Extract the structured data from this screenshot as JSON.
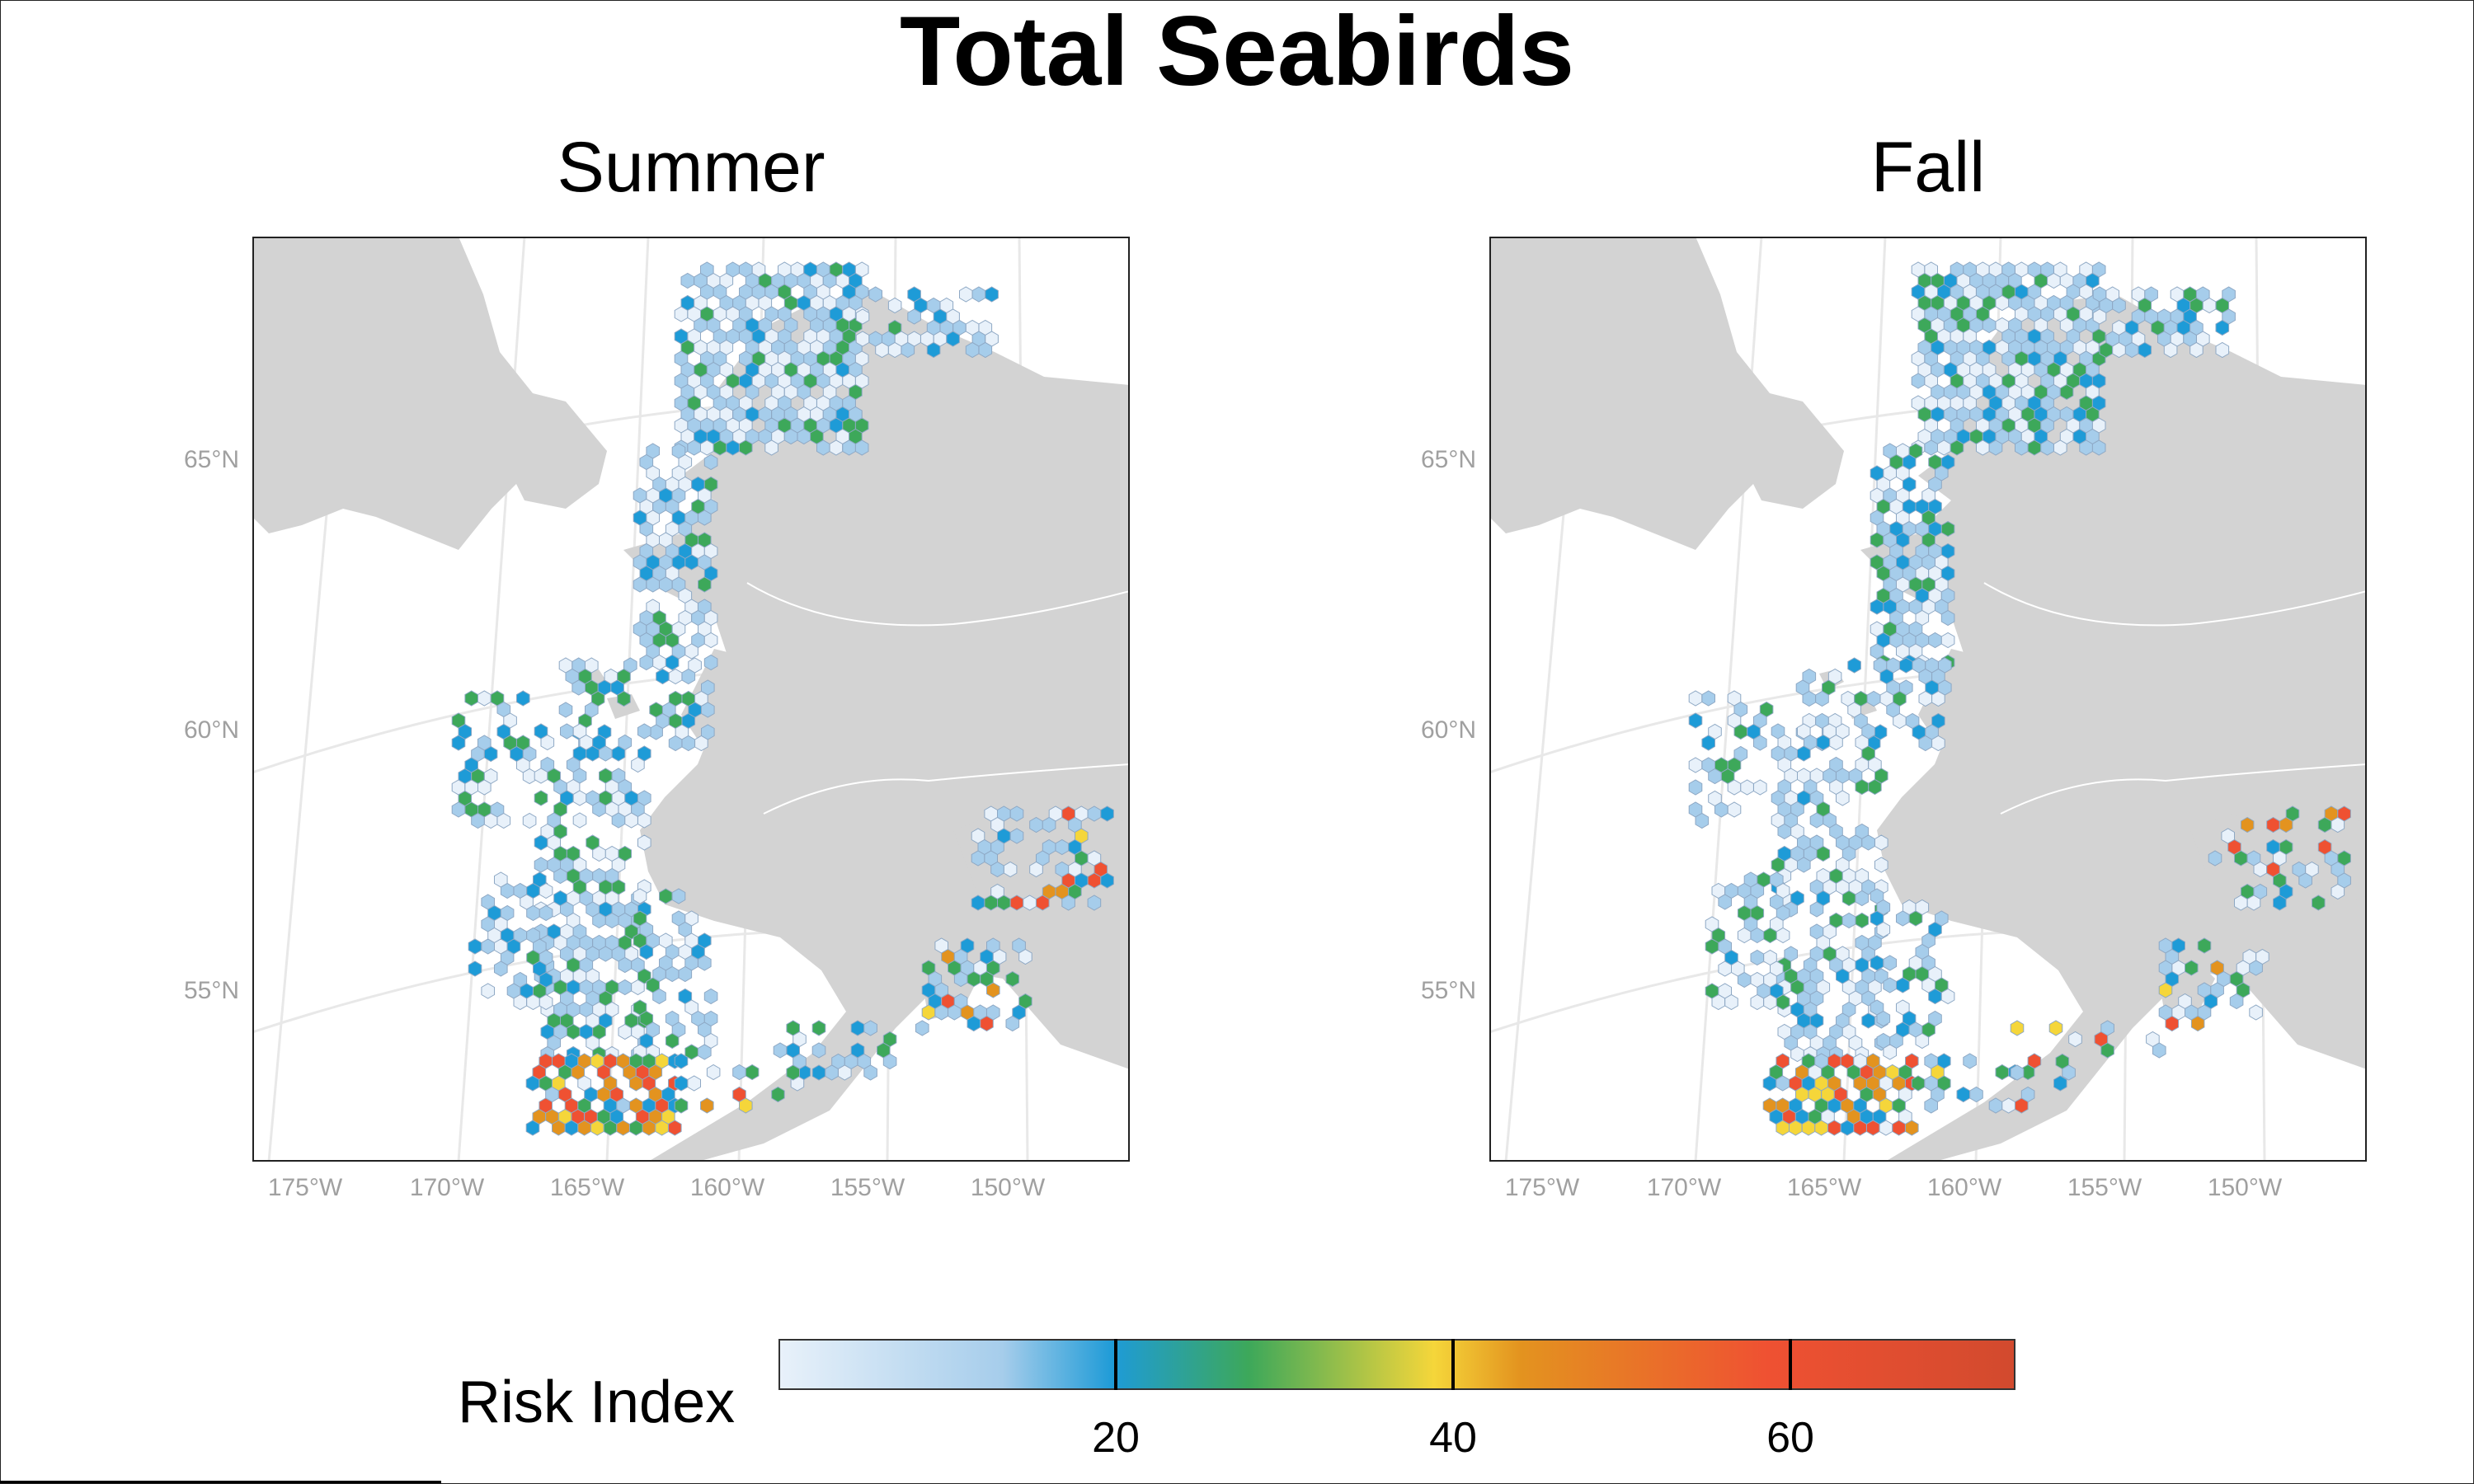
{
  "title": "Total Seabirds",
  "panels": [
    {
      "title": "Summer"
    },
    {
      "title": "Fall"
    }
  ],
  "axes": {
    "lat_labels": [
      "65°N",
      "60°N",
      "55°N"
    ],
    "lon_labels": [
      "175°W",
      "170°W",
      "165°W",
      "160°W",
      "155°W",
      "150°W"
    ]
  },
  "legend": {
    "title": "Risk Index",
    "ticks": [
      "20",
      "40",
      "60"
    ],
    "colors": {
      "low": "#e8f1fa",
      "light_blue": "#a6cdeb",
      "blue": "#1e9bd7",
      "green": "#3da85a",
      "yellow": "#f5d63a",
      "orange": "#e3931f",
      "red": "#ef5132",
      "dark_red": "#d24a2e"
    }
  },
  "colors": {
    "land": "#d3d3d3",
    "graticule": "#e8e8e8",
    "hex_outline": "#8ea8c4"
  }
}
